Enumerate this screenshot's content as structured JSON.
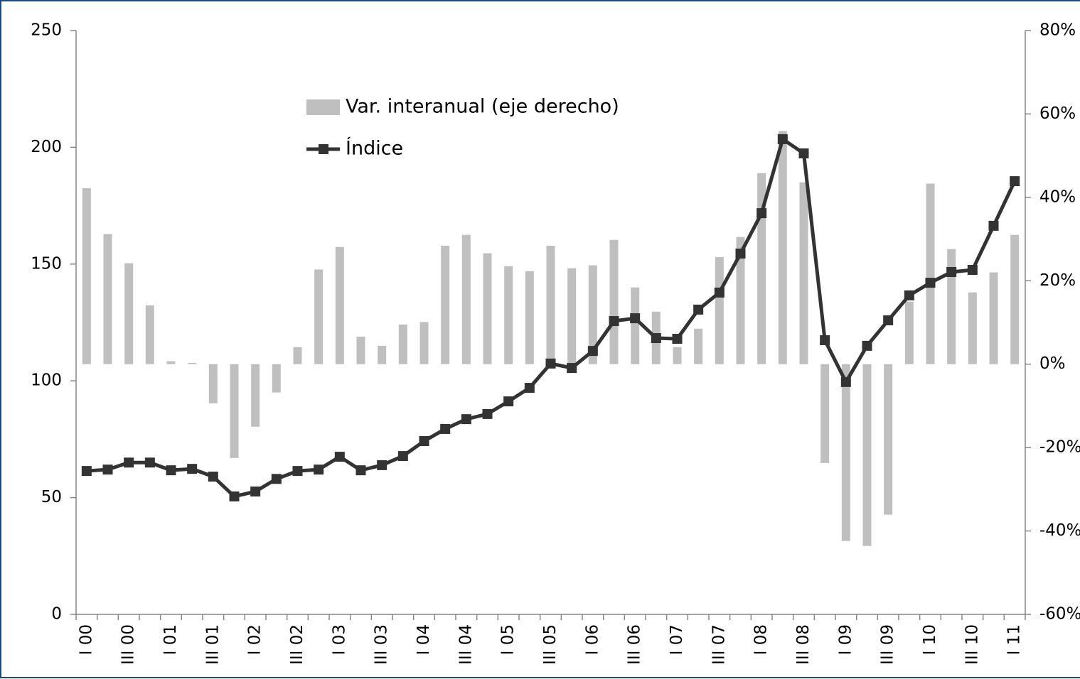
{
  "chart_data": {
    "type": "bar+line",
    "categories": [
      "I 00",
      null,
      "III 00",
      null,
      "I 01",
      null,
      "III 01",
      null,
      "I 02",
      null,
      "III 02",
      null,
      "I 03",
      null,
      "III 03",
      null,
      "I 04",
      null,
      "III 04",
      null,
      "I 05",
      null,
      "III 05",
      null,
      "I 06",
      null,
      "III 06",
      null,
      "I 07",
      null,
      "III 07",
      null,
      "I 08",
      null,
      "III 08",
      null,
      "I 09",
      null,
      "III 09",
      null,
      "I 10",
      null,
      "III 10",
      null,
      "I 11"
    ],
    "series": [
      {
        "name": "Var. interanual (eje derecho)",
        "type": "bar",
        "axis": "y2",
        "color": "#bfbfbf",
        "values": [
          42.2,
          31.2,
          24.2,
          14.1,
          0.7,
          0.3,
          -9.4,
          -22.5,
          -15,
          -6.8,
          4.1,
          22.7,
          28.1,
          6.6,
          4.4,
          9.5,
          10.1,
          28.4,
          31,
          26.6,
          23.5,
          22.3,
          28.4,
          23,
          23.7,
          29.8,
          18.4,
          12.6,
          4.1,
          8.5,
          25.7,
          30.5,
          45.8,
          55.9,
          43.6,
          -23.7,
          -42.4,
          -43.6,
          -36.1,
          15,
          43.3,
          27.6,
          17.2,
          22,
          31
        ]
      },
      {
        "name": "Índice",
        "type": "line",
        "color": "#333333",
        "values": [
          61.4,
          62,
          65,
          65,
          61.7,
          62.3,
          59,
          50.5,
          52.6,
          58,
          61.4,
          62,
          67.5,
          61.7,
          63.9,
          67.8,
          74.2,
          79.4,
          83.6,
          85.8,
          91.2,
          97,
          107.4,
          105.5,
          112.8,
          125.6,
          126.8,
          118.3,
          118,
          130.5,
          137.8,
          154.5,
          171.8,
          203.5,
          197.4,
          117.4,
          99.5,
          115,
          125.9,
          136.6,
          142,
          146.6,
          147.5,
          166.4,
          185.5
        ]
      }
    ],
    "ylim": [
      0,
      250
    ],
    "yticks": [
      0,
      50,
      100,
      150,
      200,
      250
    ],
    "y2lim": [
      -60,
      80
    ],
    "y2ticks": [
      {
        "value": -60,
        "label": "-60%"
      },
      {
        "value": -40,
        "label": "-40%"
      },
      {
        "value": -20,
        "label": "-20%"
      },
      {
        "value": 0,
        "label": "0%"
      },
      {
        "value": 20,
        "label": "20%"
      },
      {
        "value": 40,
        "label": "40%"
      },
      {
        "value": 60,
        "label": "60%"
      },
      {
        "value": 80,
        "label": "80%"
      }
    ],
    "grid": false
  }
}
